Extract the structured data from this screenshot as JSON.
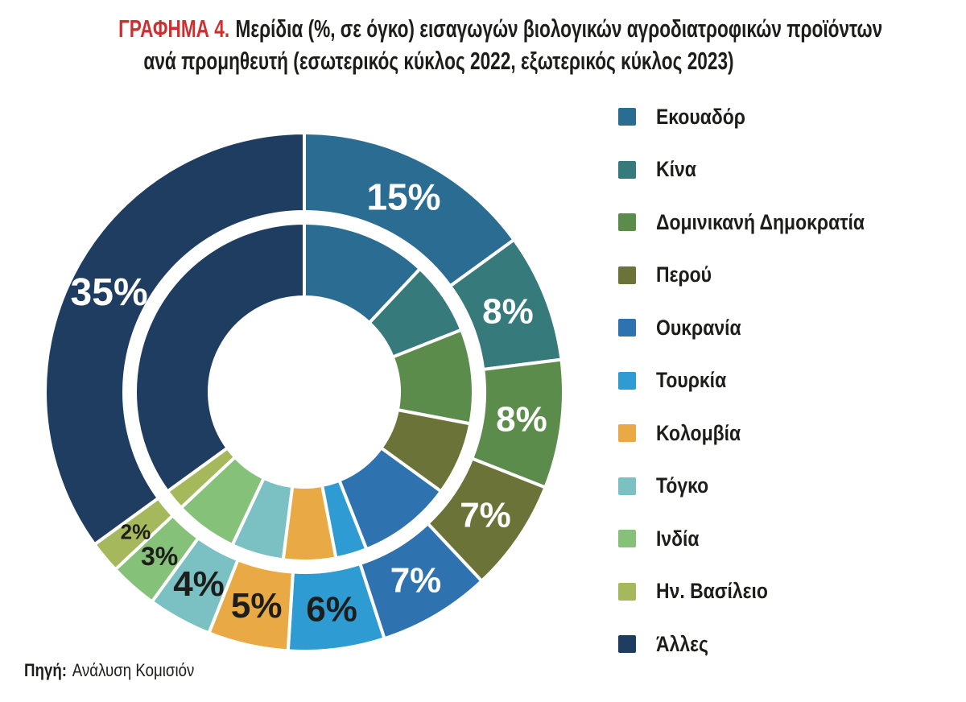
{
  "title": {
    "prefix": "ΓΡΑΦΗΜΑ 4.",
    "line1": "Μερίδια (%, σε όγκο) εισαγωγών βιολογικών αγροδιατροφικών προϊόντων",
    "line2": "ανά προμηθευτή (εσωτερικός κύκλος 2022, εξωτερικός κύκλος 2023)"
  },
  "source": {
    "label": "Πηγή:",
    "text": "Ανάλυση Κομισιόν"
  },
  "accent_colors": {
    "title_red": "#ce2f31",
    "text_dark": "#1d1d1b"
  },
  "chart_data": {
    "type": "pie",
    "subtype": "nested-donut",
    "title": "Μερίδια (%, σε όγκο) εισαγωγών βιολογικών αγροδιατροφικών προϊόντων ανά προμηθευτή",
    "inner_ring_year": "2022",
    "outer_ring_year": "2023",
    "legend_position": "right",
    "categories": [
      "Εκουαδόρ",
      "Κίνα",
      "Δομινικανή Δημοκρατία",
      "Περού",
      "Ουκρανία",
      "Τουρκία",
      "Κολομβία",
      "Τόγκο",
      "Ινδία",
      "Ην. Βασίλειο",
      "Άλλες"
    ],
    "colors": [
      "#2b6d92",
      "#377a7b",
      "#5c8c4b",
      "#6b7339",
      "#2e72b0",
      "#2e9cd3",
      "#e9a945",
      "#7bc0c3",
      "#85c178",
      "#a5b85c",
      "#1e3d61"
    ],
    "series": [
      {
        "name": "2022 (εσωτερικός κύκλος)",
        "values": [
          12,
          7,
          9,
          7,
          9,
          3,
          5,
          5,
          6,
          2,
          35
        ],
        "labels_visible": false,
        "values_estimated_from_arcs": true
      },
      {
        "name": "2023 (εξωτερικός κύκλος)",
        "values": [
          15,
          8,
          8,
          7,
          7,
          6,
          5,
          4,
          3,
          2,
          35
        ],
        "labels_visible": true,
        "labels": [
          "15%",
          "8%",
          "8%",
          "7%",
          "7%",
          "6%",
          "5%",
          "4%",
          "3%",
          "2%",
          "35%"
        ]
      }
    ]
  }
}
